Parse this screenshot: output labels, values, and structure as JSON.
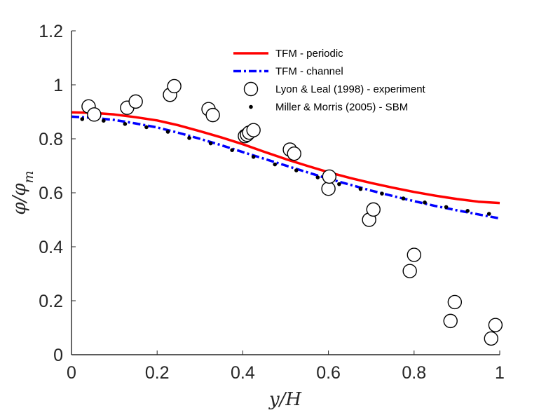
{
  "chart_data": {
    "type": "line",
    "title": "",
    "xlabel": "y/H",
    "ylabel": "φ/φ_m",
    "xlim": [
      0,
      1
    ],
    "ylim": [
      0,
      1.2
    ],
    "xticks": [
      "0",
      "0.2",
      "0.4",
      "0.6",
      "0.8",
      "1"
    ],
    "yticks": [
      "0",
      "0.2",
      "0.4",
      "0.6",
      "0.8",
      "1",
      "1.2"
    ],
    "grid": false,
    "legend_position": "top-right",
    "series": [
      {
        "name": "TFM - periodic",
        "style": "solid-line",
        "color": "#ff0000",
        "x": [
          0,
          0.05,
          0.1,
          0.15,
          0.2,
          0.25,
          0.3,
          0.35,
          0.4,
          0.45,
          0.5,
          0.55,
          0.6,
          0.65,
          0.7,
          0.75,
          0.8,
          0.85,
          0.9,
          0.95,
          1.0
        ],
        "y": [
          0.898,
          0.896,
          0.89,
          0.88,
          0.868,
          0.85,
          0.828,
          0.805,
          0.78,
          0.752,
          0.725,
          0.7,
          0.676,
          0.655,
          0.636,
          0.619,
          0.603,
          0.589,
          0.577,
          0.567,
          0.562
        ]
      },
      {
        "name": "TFM - channel",
        "style": "dash-dot-line",
        "color": "#0000ff",
        "x": [
          0,
          0.05,
          0.1,
          0.15,
          0.2,
          0.25,
          0.3,
          0.35,
          0.4,
          0.45,
          0.5,
          0.55,
          0.6,
          0.65,
          0.7,
          0.75,
          0.8,
          0.85,
          0.9,
          0.95,
          1.0
        ],
        "y": [
          0.882,
          0.878,
          0.87,
          0.857,
          0.842,
          0.822,
          0.8,
          0.776,
          0.751,
          0.726,
          0.701,
          0.676,
          0.652,
          0.63,
          0.608,
          0.588,
          0.569,
          0.551,
          0.535,
          0.52,
          0.505
        ]
      },
      {
        "name": "Lyon & Leal (1998) - experiment",
        "style": "open-circle",
        "color": "#000000",
        "x": [
          0.04,
          0.053,
          0.13,
          0.15,
          0.23,
          0.24,
          0.32,
          0.33,
          0.405,
          0.41,
          0.415,
          0.425,
          0.51,
          0.52,
          0.6,
          0.602,
          0.695,
          0.705,
          0.79,
          0.8,
          0.885,
          0.895,
          0.98,
          0.99
        ],
        "y": [
          0.92,
          0.89,
          0.915,
          0.938,
          0.963,
          0.995,
          0.91,
          0.888,
          0.81,
          0.815,
          0.823,
          0.832,
          0.76,
          0.745,
          0.615,
          0.66,
          0.5,
          0.538,
          0.31,
          0.37,
          0.125,
          0.195,
          0.06,
          0.11
        ]
      },
      {
        "name": "Miller & Morris (2005) - SBM",
        "style": "dot",
        "color": "#000000",
        "x": [
          0.025,
          0.075,
          0.125,
          0.175,
          0.225,
          0.275,
          0.325,
          0.375,
          0.425,
          0.475,
          0.525,
          0.575,
          0.625,
          0.675,
          0.725,
          0.775,
          0.825,
          0.875,
          0.925,
          0.975
        ],
        "y": [
          0.873,
          0.867,
          0.855,
          0.843,
          0.826,
          0.803,
          0.783,
          0.758,
          0.733,
          0.705,
          0.683,
          0.657,
          0.632,
          0.614,
          0.597,
          0.579,
          0.564,
          0.547,
          0.533,
          0.522
        ]
      }
    ]
  }
}
